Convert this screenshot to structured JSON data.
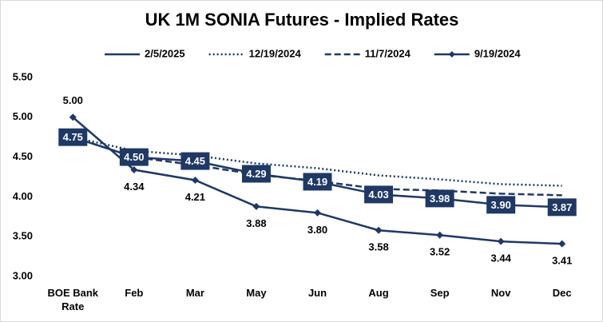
{
  "chart_data": {
    "type": "line",
    "title": "UK 1M SONIA Futures - Implied Rates",
    "categories": [
      "BOE Bank Rate",
      "Feb",
      "Mar",
      "May",
      "Jun",
      "Aug",
      "Sep",
      "Nov",
      "Dec"
    ],
    "series": [
      {
        "name": "2/5/2025",
        "color": "#1f3864",
        "style": "solid",
        "values": [
          4.75,
          4.5,
          4.45,
          4.29,
          4.19,
          4.03,
          3.98,
          3.9,
          3.87
        ],
        "value_labels": [
          "4.75",
          "4.50",
          "4.45",
          "4.29",
          "4.19",
          "4.03",
          "3.98",
          "3.90",
          "3.87"
        ]
      },
      {
        "name": "12/19/2024",
        "color": "#1f3864",
        "style": "dotted",
        "values": [
          4.75,
          4.58,
          4.52,
          4.42,
          4.36,
          4.27,
          4.22,
          4.16,
          4.14
        ]
      },
      {
        "name": "11/7/2024",
        "color": "#1f3864",
        "style": "dashed",
        "values": [
          4.75,
          4.5,
          4.4,
          4.28,
          4.2,
          4.1,
          4.08,
          4.04,
          4.02
        ]
      },
      {
        "name": "9/19/2024",
        "color": "#1f3864",
        "style": "solid",
        "marker": "diamond",
        "values": [
          5.0,
          4.34,
          4.21,
          3.88,
          3.8,
          3.58,
          3.52,
          3.44,
          3.41
        ],
        "value_labels": [
          "5.00",
          "4.34",
          "4.21",
          "3.88",
          "3.80",
          "3.58",
          "3.52",
          "3.44",
          "3.41"
        ]
      }
    ],
    "ylim": [
      3.0,
      5.5
    ],
    "yticks": [
      {
        "value": 3.0,
        "label": "3.00"
      },
      {
        "value": 3.5,
        "label": "3.50"
      },
      {
        "value": 4.0,
        "label": "4.00"
      },
      {
        "value": 4.5,
        "label": "4.50"
      },
      {
        "value": 5.0,
        "label": "5.00"
      },
      {
        "value": 5.5,
        "label": "5.50"
      }
    ],
    "grid": false,
    "legend": "top"
  }
}
